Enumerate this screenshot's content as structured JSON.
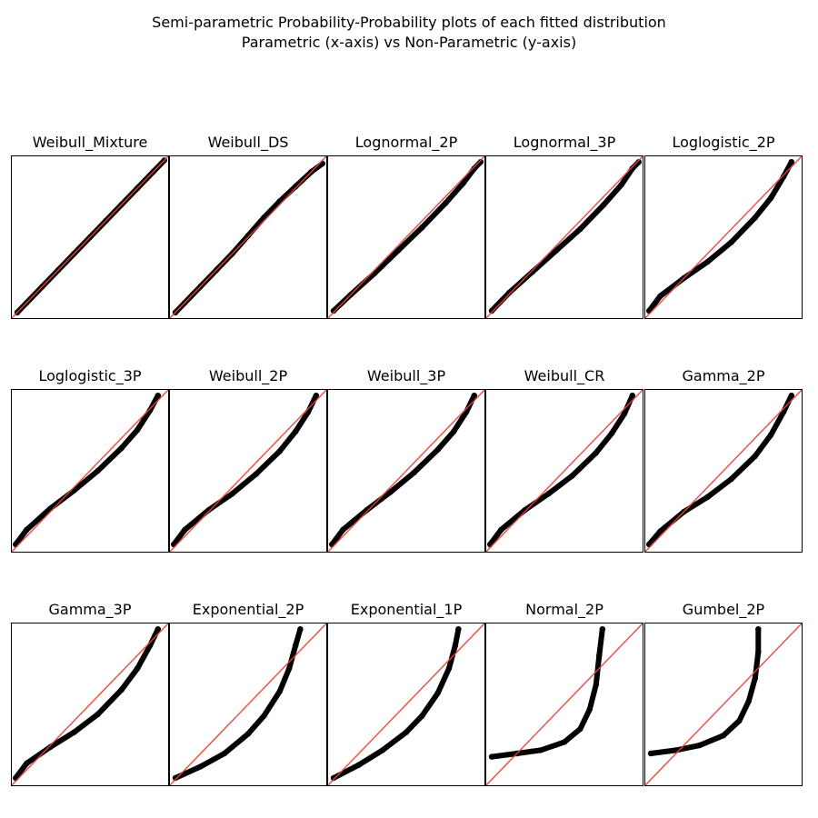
{
  "figure": {
    "title": "Semi-parametric Probability-Probability plots of each fitted distribution",
    "subtitle": "Parametric (x-axis) vs Non-Parametric (y-axis)"
  },
  "colors": {
    "points": "#000000",
    "reference_line": "#e8443a",
    "frame": "#000000"
  },
  "chart_data": [
    {
      "type": "scatter",
      "title": "Weibull_Mixture",
      "xlim": [
        0,
        1
      ],
      "ylim": [
        0,
        1
      ],
      "xlabel": "",
      "ylabel": "",
      "grid": false,
      "reference_line": "y = x",
      "x": [
        0.04,
        0.1,
        0.2,
        0.3,
        0.4,
        0.5,
        0.6,
        0.7,
        0.8,
        0.9,
        0.97
      ],
      "y": [
        0.04,
        0.1,
        0.2,
        0.3,
        0.4,
        0.5,
        0.6,
        0.7,
        0.8,
        0.9,
        0.97
      ]
    },
    {
      "type": "scatter",
      "title": "Weibull_DS",
      "xlim": [
        0,
        1
      ],
      "ylim": [
        0,
        1
      ],
      "xlabel": "",
      "ylabel": "",
      "grid": false,
      "reference_line": "y = x",
      "x": [
        0.04,
        0.1,
        0.2,
        0.3,
        0.4,
        0.5,
        0.6,
        0.7,
        0.8,
        0.9,
        0.97
      ],
      "y": [
        0.04,
        0.1,
        0.2,
        0.3,
        0.4,
        0.51,
        0.62,
        0.72,
        0.81,
        0.9,
        0.95
      ]
    },
    {
      "type": "scatter",
      "title": "Lognormal_2P",
      "xlim": [
        0,
        1
      ],
      "ylim": [
        0,
        1
      ],
      "xlabel": "",
      "ylabel": "",
      "grid": false,
      "reference_line": "y = x",
      "x": [
        0.04,
        0.15,
        0.3,
        0.45,
        0.6,
        0.75,
        0.86,
        0.93,
        0.97
      ],
      "y": [
        0.05,
        0.15,
        0.28,
        0.42,
        0.56,
        0.71,
        0.83,
        0.92,
        0.96
      ]
    },
    {
      "type": "scatter",
      "title": "Lognormal_3P",
      "xlim": [
        0,
        1
      ],
      "ylim": [
        0,
        1
      ],
      "xlabel": "",
      "ylabel": "",
      "grid": false,
      "reference_line": "y = x",
      "x": [
        0.04,
        0.15,
        0.3,
        0.45,
        0.6,
        0.75,
        0.86,
        0.93,
        0.97
      ],
      "y": [
        0.05,
        0.16,
        0.29,
        0.42,
        0.55,
        0.7,
        0.82,
        0.92,
        0.96
      ]
    },
    {
      "type": "scatter",
      "title": "Loglogistic_2P",
      "xlim": [
        0,
        1
      ],
      "ylim": [
        0,
        1
      ],
      "xlabel": "",
      "ylabel": "",
      "grid": false,
      "reference_line": "y = x",
      "x": [
        0.03,
        0.1,
        0.25,
        0.4,
        0.55,
        0.7,
        0.8,
        0.88,
        0.93
      ],
      "y": [
        0.05,
        0.14,
        0.25,
        0.35,
        0.47,
        0.62,
        0.74,
        0.87,
        0.96
      ]
    },
    {
      "type": "scatter",
      "title": "Loglogistic_3P",
      "xlim": [
        0,
        1
      ],
      "ylim": [
        0,
        1
      ],
      "xlabel": "",
      "ylabel": "",
      "grid": false,
      "reference_line": "y = x",
      "x": [
        0.03,
        0.1,
        0.25,
        0.4,
        0.55,
        0.7,
        0.8,
        0.88,
        0.93
      ],
      "y": [
        0.05,
        0.14,
        0.27,
        0.38,
        0.5,
        0.64,
        0.75,
        0.87,
        0.96
      ]
    },
    {
      "type": "scatter",
      "title": "Weibull_2P",
      "xlim": [
        0,
        1
      ],
      "ylim": [
        0,
        1
      ],
      "xlabel": "",
      "ylabel": "",
      "grid": false,
      "reference_line": "y = x",
      "x": [
        0.03,
        0.1,
        0.25,
        0.4,
        0.55,
        0.7,
        0.8,
        0.88,
        0.93
      ],
      "y": [
        0.05,
        0.14,
        0.26,
        0.36,
        0.48,
        0.62,
        0.74,
        0.86,
        0.96
      ]
    },
    {
      "type": "scatter",
      "title": "Weibull_3P",
      "xlim": [
        0,
        1
      ],
      "ylim": [
        0,
        1
      ],
      "xlabel": "",
      "ylabel": "",
      "grid": false,
      "reference_line": "y = x",
      "x": [
        0.03,
        0.1,
        0.25,
        0.4,
        0.55,
        0.7,
        0.8,
        0.88,
        0.93
      ],
      "y": [
        0.05,
        0.14,
        0.26,
        0.37,
        0.49,
        0.63,
        0.74,
        0.86,
        0.96
      ]
    },
    {
      "type": "scatter",
      "title": "Weibull_CR",
      "xlim": [
        0,
        1
      ],
      "ylim": [
        0,
        1
      ],
      "xlabel": "",
      "ylabel": "",
      "grid": false,
      "reference_line": "y = x",
      "x": [
        0.03,
        0.1,
        0.25,
        0.4,
        0.55,
        0.7,
        0.8,
        0.88,
        0.93
      ],
      "y": [
        0.05,
        0.14,
        0.26,
        0.36,
        0.47,
        0.61,
        0.73,
        0.85,
        0.96
      ]
    },
    {
      "type": "scatter",
      "title": "Gamma_2P",
      "xlim": [
        0,
        1
      ],
      "ylim": [
        0,
        1
      ],
      "xlabel": "",
      "ylabel": "",
      "grid": false,
      "reference_line": "y = x",
      "x": [
        0.03,
        0.1,
        0.25,
        0.4,
        0.55,
        0.7,
        0.8,
        0.88,
        0.93
      ],
      "y": [
        0.05,
        0.13,
        0.25,
        0.34,
        0.45,
        0.59,
        0.72,
        0.86,
        0.96
      ]
    },
    {
      "type": "scatter",
      "title": "Gamma_3P",
      "xlim": [
        0,
        1
      ],
      "ylim": [
        0,
        1
      ],
      "xlabel": "",
      "ylabel": "",
      "grid": false,
      "reference_line": "y = x",
      "x": [
        0.03,
        0.1,
        0.25,
        0.4,
        0.55,
        0.7,
        0.8,
        0.88,
        0.93
      ],
      "y": [
        0.05,
        0.14,
        0.24,
        0.33,
        0.44,
        0.59,
        0.72,
        0.86,
        0.96
      ]
    },
    {
      "type": "scatter",
      "title": "Exponential_2P",
      "xlim": [
        0,
        1
      ],
      "ylim": [
        0,
        1
      ],
      "xlabel": "",
      "ylabel": "",
      "grid": false,
      "reference_line": "y = x",
      "x": [
        0.04,
        0.2,
        0.35,
        0.5,
        0.6,
        0.7,
        0.76,
        0.8,
        0.83
      ],
      "y": [
        0.05,
        0.12,
        0.2,
        0.32,
        0.43,
        0.58,
        0.72,
        0.86,
        0.96
      ]
    },
    {
      "type": "scatter",
      "title": "Exponential_1P",
      "xlim": [
        0,
        1
      ],
      "ylim": [
        0,
        1
      ],
      "xlabel": "",
      "ylabel": "",
      "grid": false,
      "reference_line": "y = x",
      "x": [
        0.04,
        0.2,
        0.35,
        0.5,
        0.6,
        0.7,
        0.77,
        0.81,
        0.83
      ],
      "y": [
        0.05,
        0.13,
        0.22,
        0.33,
        0.43,
        0.57,
        0.72,
        0.86,
        0.96
      ]
    },
    {
      "type": "scatter",
      "title": "Normal_2P",
      "xlim": [
        0,
        1
      ],
      "ylim": [
        0,
        1
      ],
      "xlabel": "",
      "ylabel": "",
      "grid": false,
      "reference_line": "y = x",
      "x": [
        0.04,
        0.2,
        0.35,
        0.5,
        0.6,
        0.66,
        0.7,
        0.72,
        0.74
      ],
      "y": [
        0.18,
        0.2,
        0.22,
        0.27,
        0.35,
        0.47,
        0.62,
        0.8,
        0.96
      ]
    },
    {
      "type": "scatter",
      "title": "Gumbel_2P",
      "xlim": [
        0,
        1
      ],
      "ylim": [
        0,
        1
      ],
      "xlabel": "",
      "ylabel": "",
      "grid": false,
      "reference_line": "y = x",
      "x": [
        0.04,
        0.2,
        0.35,
        0.5,
        0.6,
        0.66,
        0.7,
        0.72,
        0.72
      ],
      "y": [
        0.2,
        0.22,
        0.25,
        0.31,
        0.4,
        0.52,
        0.66,
        0.82,
        0.96
      ]
    }
  ]
}
